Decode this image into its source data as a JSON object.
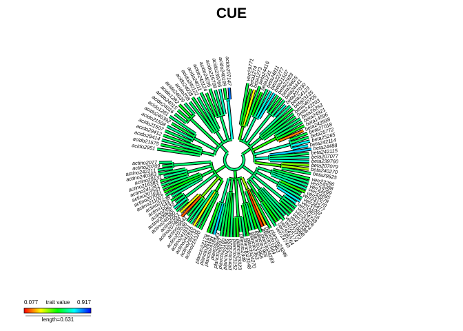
{
  "chart_data": {
    "type": "tree",
    "layout": "fan",
    "title": "CUE",
    "trait_range": [
      0.077,
      0.917
    ],
    "colormap": [
      "#ff0000",
      "#ffff00",
      "#00ff00",
      "#00ffff",
      "#0000ff"
    ],
    "legend": {
      "min": "0.077",
      "label": "trait value",
      "max": "0.917",
      "scale_text": "length=0.631",
      "placement": "bottom-left"
    },
    "clades": [
      {
        "name": "beta",
        "tips": [
          [
            "verr29771",
            0.56
          ],
          [
            "beta1274",
            0.48
          ],
          [
            "beta1273",
            0.29
          ],
          [
            "beta24416",
            0.55
          ],
          [
            "beta1231",
            0.5
          ],
          [
            "beta24811",
            0.6
          ],
          [
            "beta22277",
            0.68
          ],
          [
            "beta21507",
            0.72
          ],
          [
            "beta22928",
            0.58
          ],
          [
            "beta26825",
            0.55
          ],
          [
            "beta24441",
            0.6
          ],
          [
            "beta207030",
            0.66
          ],
          [
            "beta24123",
            0.62
          ],
          [
            "beta23135",
            0.55
          ],
          [
            "beta240705",
            0.58
          ],
          [
            "beta242203",
            0.57
          ],
          [
            "beta26263",
            0.6
          ],
          [
            "beta24921",
            0.58
          ],
          [
            "beta14596",
            0.52
          ],
          [
            "beta243938",
            0.18
          ],
          [
            "beta27018",
            0.55
          ],
          [
            "beta25772",
            0.58
          ],
          [
            "beta25265",
            0.7
          ],
          [
            "beta242114",
            0.72
          ],
          [
            "beta24488",
            0.75
          ],
          [
            "beta242115",
            0.58
          ],
          [
            "beta207077",
            0.64
          ],
          [
            "beta239760",
            0.66
          ],
          [
            "beta207079",
            0.4
          ],
          [
            "beta240270",
            0.36
          ],
          [
            "beta29625",
            0.58
          ]
        ]
      },
      {
        "name": "verr",
        "tips": [
          [
            "verr23286",
            0.55
          ],
          [
            "verr23288",
            0.6
          ],
          [
            "verr23289",
            0.62
          ],
          [
            "verr23285",
            0.64
          ],
          [
            "verr29679",
            0.46
          ],
          [
            "verr241270",
            0.58
          ],
          [
            "verr26477",
            0.62
          ],
          [
            "verr11002",
            0.72
          ],
          [
            "verr239716",
            0.68
          ],
          [
            "verr24748",
            0.6
          ],
          [
            "verr24926",
            0.58
          ],
          [
            "verr24924",
            0.55
          ],
          [
            "verr21586",
            0.6
          ],
          [
            "verr219998",
            0.62
          ],
          [
            "verr23772",
            0.58
          ],
          [
            "verr242174",
            0.56
          ],
          [
            "verr239764",
            0.5
          ],
          [
            "verr24740",
            0.6
          ]
        ]
      },
      {
        "name": "planc",
        "tips": [
          [
            "plancto23246",
            0.55
          ],
          [
            "plancto1963",
            0.22
          ],
          [
            "plancto1964",
            0.12
          ],
          [
            "plancto24283",
            0.58
          ],
          [
            "plancto1965",
            0.5
          ],
          [
            "plancto1966",
            0.62
          ],
          [
            "plancto2363",
            0.56
          ],
          [
            "plancto24270",
            0.52
          ],
          [
            "plancto23148",
            0.6
          ],
          [
            "plancto2349",
            0.58
          ],
          [
            "plancto23323",
            0.48
          ],
          [
            "plancto23152",
            0.55
          ],
          [
            "plancto23220",
            0.6
          ],
          [
            "plancto23196",
            0.52
          ],
          [
            "plancto23160",
            0.56
          ],
          [
            "plancto20937",
            0.58
          ],
          [
            "plancto2343",
            0.62
          ],
          [
            "plancto24181",
            0.75
          ],
          [
            "plancto26183",
            0.6
          ],
          [
            "plancto22178",
            0.5
          ]
        ]
      },
      {
        "name": "actino",
        "tips": [
          [
            "actino216320",
            0.55
          ],
          [
            "actino239732",
            0.58
          ],
          [
            "actino241810",
            0.28
          ],
          [
            "actino241831",
            0.62
          ],
          [
            "actino207036",
            0.6
          ],
          [
            "actino29541",
            0.56
          ],
          [
            "actino207488",
            0.15
          ],
          [
            "actino2051",
            0.3
          ],
          [
            "actino240390",
            0.58
          ],
          [
            "actino206826",
            0.65
          ],
          [
            "actino29633",
            0.6
          ],
          [
            "actino1543",
            0.55
          ],
          [
            "actino21638",
            0.62
          ],
          [
            "actino211007",
            0.58
          ],
          [
            "actino207091",
            0.5
          ],
          [
            "actino207267",
            0.56
          ],
          [
            "actino241241",
            0.6
          ],
          [
            "actino216385",
            0.55
          ],
          [
            "actino29131",
            0.62
          ],
          [
            "actino240363",
            0.58
          ],
          [
            "actino242211",
            0.6
          ],
          [
            "actino20709",
            0.57
          ],
          [
            "actino2077",
            0.6
          ]
        ]
      },
      {
        "name": "acido",
        "tips": [
          [
            "acido2951",
            0.58
          ],
          [
            "acido21575",
            0.55
          ],
          [
            "acido29414",
            0.6
          ],
          [
            "acido29412",
            0.56
          ],
          [
            "acido21507",
            0.58
          ],
          [
            "acido21508",
            0.62
          ],
          [
            "acido240392",
            0.55
          ],
          [
            "acido1281",
            0.6
          ],
          [
            "acido24016",
            0.58
          ],
          [
            "acido24015",
            0.55
          ],
          [
            "acido1282",
            0.52
          ],
          [
            "acido24039",
            0.6
          ],
          [
            "acido208",
            0.58
          ],
          [
            "acido24038",
            0.56
          ],
          [
            "acido240122",
            0.6
          ],
          [
            "acido24011",
            0.58
          ],
          [
            "acido240124",
            0.55
          ],
          [
            "acido24036",
            0.57
          ],
          [
            "acido215708",
            0.6
          ],
          [
            "acido239766",
            0.65
          ],
          [
            "acido240199",
            0.55
          ],
          [
            "acido207147",
            0.82
          ]
        ]
      }
    ]
  }
}
